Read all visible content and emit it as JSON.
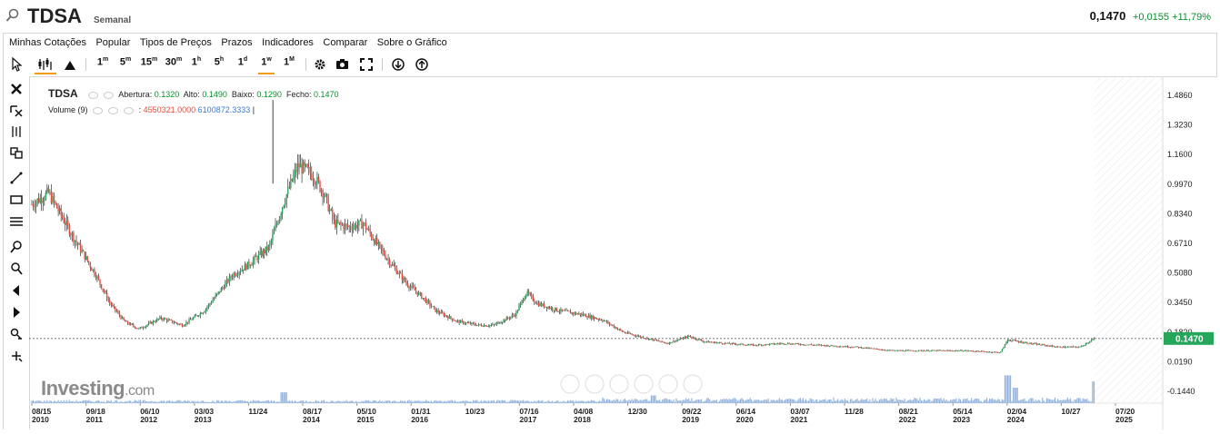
{
  "header": {
    "symbol": "TDSA",
    "period": "Semanal",
    "last": "0,1470",
    "change": "+0,0155 +11,79%"
  },
  "menu": [
    "Minhas Cotações",
    "Popular",
    "Tipos de Preços",
    "Prazos",
    "Indicadores",
    "Comparar",
    "Sobre o Gráfico"
  ],
  "toolbar": {
    "intervals": [
      "1m",
      "5m",
      "15m",
      "30m",
      "1h",
      "5h",
      "1d",
      "1w",
      "1M"
    ],
    "selected_interval": "1w"
  },
  "legend": {
    "symbol": "TDSA",
    "open_label": "Abertura:",
    "open": "0.1320",
    "high_label": "Alto:",
    "high": "0.1490",
    "low_label": "Baixo:",
    "low": "0.1290",
    "close_label": "Fecho:",
    "close": "0.1470",
    "volume_label": "Volume (9)",
    "volume_prefix": ":",
    "volume_a": "4550321.0000",
    "volume_b": "6100872.3333",
    "volume_suffix": "|"
  },
  "brand": {
    "name": "Investing",
    "suffix": ".com"
  },
  "colors": {
    "up": "#26a65b",
    "down": "#e74c3c",
    "volume": "#7ea6d8",
    "current": "#26a65b"
  },
  "chart_data": {
    "type": "candlestick",
    "current_price": 0.147,
    "current_price_label": "0.1470",
    "y_ticks": [
      "1.4860",
      "1.3230",
      "1.1600",
      "0.9970",
      "0.8340",
      "0.6710",
      "0.5080",
      "0.3450",
      "0.1820",
      "0.0190",
      "-0.1440"
    ],
    "x_ticks": [
      {
        "md": "08/15",
        "y": "2010"
      },
      {
        "md": "09/18",
        "y": "2011"
      },
      {
        "md": "06/10",
        "y": "2012"
      },
      {
        "md": "03/03",
        "y": "2013"
      },
      {
        "md": "11/24",
        "y": ""
      },
      {
        "md": "08/17",
        "y": "2014"
      },
      {
        "md": "05/10",
        "y": "2015"
      },
      {
        "md": "01/31",
        "y": "2016"
      },
      {
        "md": "10/23",
        "y": ""
      },
      {
        "md": "07/16",
        "y": "2017"
      },
      {
        "md": "04/08",
        "y": "2018"
      },
      {
        "md": "12/30",
        "y": ""
      },
      {
        "md": "09/22",
        "y": "2019"
      },
      {
        "md": "06/14",
        "y": "2020"
      },
      {
        "md": "03/07",
        "y": "2021"
      },
      {
        "md": "11/28",
        "y": ""
      },
      {
        "md": "08/21",
        "y": "2022"
      },
      {
        "md": "05/14",
        "y": "2023"
      },
      {
        "md": "02/04",
        "y": "2024"
      },
      {
        "md": "10/27",
        "y": ""
      },
      {
        "md": "07/20",
        "y": "2025"
      }
    ],
    "price_series": [
      [
        2010.6,
        0.88
      ],
      [
        2010.85,
        0.95
      ],
      [
        2011.2,
        0.7
      ],
      [
        2011.5,
        0.5
      ],
      [
        2011.7,
        0.34
      ],
      [
        2011.9,
        0.24
      ],
      [
        2012.1,
        0.2
      ],
      [
        2012.4,
        0.26
      ],
      [
        2012.7,
        0.22
      ],
      [
        2013.0,
        0.3
      ],
      [
        2013.2,
        0.4
      ],
      [
        2013.4,
        0.5
      ],
      [
        2013.6,
        0.55
      ],
      [
        2013.9,
        0.65
      ],
      [
        2014.1,
        0.9
      ],
      [
        2014.3,
        1.1
      ],
      [
        2014.5,
        1.05
      ],
      [
        2014.65,
        0.95
      ],
      [
        2014.8,
        0.78
      ],
      [
        2015.0,
        0.76
      ],
      [
        2015.2,
        0.78
      ],
      [
        2015.4,
        0.66
      ],
      [
        2015.6,
        0.55
      ],
      [
        2015.8,
        0.45
      ],
      [
        2016.0,
        0.38
      ],
      [
        2016.2,
        0.3
      ],
      [
        2016.5,
        0.24
      ],
      [
        2016.8,
        0.22
      ],
      [
        2017.0,
        0.22
      ],
      [
        2017.3,
        0.28
      ],
      [
        2017.45,
        0.4
      ],
      [
        2017.6,
        0.34
      ],
      [
        2017.9,
        0.3
      ],
      [
        2018.2,
        0.28
      ],
      [
        2018.5,
        0.25
      ],
      [
        2018.8,
        0.18
      ],
      [
        2019.1,
        0.15
      ],
      [
        2019.4,
        0.12
      ],
      [
        2019.7,
        0.16
      ],
      [
        2019.9,
        0.13
      ],
      [
        2020.2,
        0.12
      ],
      [
        2020.6,
        0.11
      ],
      [
        2021.0,
        0.12
      ],
      [
        2021.5,
        0.11
      ],
      [
        2022.0,
        0.1
      ],
      [
        2022.5,
        0.08
      ],
      [
        2023.0,
        0.08
      ],
      [
        2023.5,
        0.08
      ],
      [
        2024.0,
        0.07
      ],
      [
        2024.1,
        0.14
      ],
      [
        2024.4,
        0.12
      ],
      [
        2024.8,
        0.1
      ],
      [
        2025.1,
        0.1
      ],
      [
        2025.3,
        0.147
      ]
    ],
    "volume_peaks": [
      [
        2014.1,
        0.35
      ],
      [
        2019.2,
        0.25
      ],
      [
        2024.1,
        0.9
      ],
      [
        2024.2,
        0.5
      ],
      [
        2025.3,
        0.7
      ]
    ]
  }
}
